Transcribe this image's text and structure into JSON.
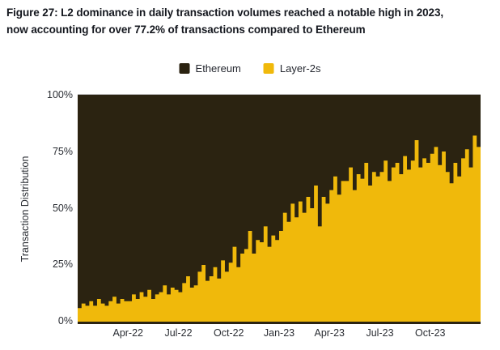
{
  "figure": {
    "title_lines": [
      "Figure 27: L2 dominance in daily transaction volumes reached a notable high in 2023,",
      "now accounting for over 77.2% of transactions compared to Ethereum"
    ],
    "highlight_value": "77.2%"
  },
  "legend": [
    {
      "label": "Ethereum",
      "color": "#2b2311"
    },
    {
      "label": "Layer-2s",
      "color": "#f0b90b"
    }
  ],
  "colors": {
    "ethereum_fill": "#2b2311",
    "layer2_fill": "#f0b90b",
    "background": "#ffffff",
    "text": "#15181f"
  },
  "chart_data": {
    "type": "area",
    "subtype": "stacked-100pct-daily-bars",
    "title": "L2 dominance in daily transaction volumes reached a notable high in 2023, now accounting for over 77.2% of transactions compared to Ethereum",
    "xlabel": "",
    "ylabel": "Transaction Distribution",
    "ylim": [
      0,
      100
    ],
    "y_ticks_top_to_bottom": [
      "100%",
      "75%",
      "50%",
      "25%",
      "0%"
    ],
    "x_ticks": [
      "Apr-22",
      "Jul-22",
      "Oct-22",
      "Jan-23",
      "Apr-23",
      "Jul-23",
      "Oct-23"
    ],
    "x_range_note": "Jan-2022 through Dec-2023, weekly samples of daily data (percent of transactions)",
    "legend_position": "top-center",
    "grid": false,
    "series": [
      {
        "name": "Layer-2s",
        "color": "#f0b90b",
        "unit": "%",
        "values": [
          6,
          8,
          7,
          9,
          7,
          10,
          8,
          7,
          9,
          11,
          8,
          10,
          9,
          9,
          12,
          10,
          13,
          11,
          14,
          10,
          12,
          13,
          16,
          12,
          15,
          14,
          13,
          17,
          20,
          15,
          16,
          22,
          25,
          18,
          20,
          24,
          19,
          27,
          22,
          26,
          33,
          24,
          30,
          32,
          40,
          30,
          36,
          35,
          42,
          33,
          38,
          36,
          40,
          48,
          44,
          52,
          46,
          53,
          48,
          55,
          50,
          60,
          42,
          55,
          52,
          58,
          64,
          56,
          62,
          62,
          68,
          58,
          65,
          63,
          70,
          60,
          66,
          64,
          66,
          71,
          62,
          68,
          70,
          65,
          73,
          67,
          71,
          80,
          68,
          72,
          70,
          74,
          77,
          69,
          75,
          66,
          61,
          70,
          64,
          72,
          76,
          68,
          82,
          77
        ]
      },
      {
        "name": "Ethereum",
        "color": "#2b2311",
        "unit": "%",
        "note": "complement: 100 minus Layer-2s share"
      }
    ]
  }
}
